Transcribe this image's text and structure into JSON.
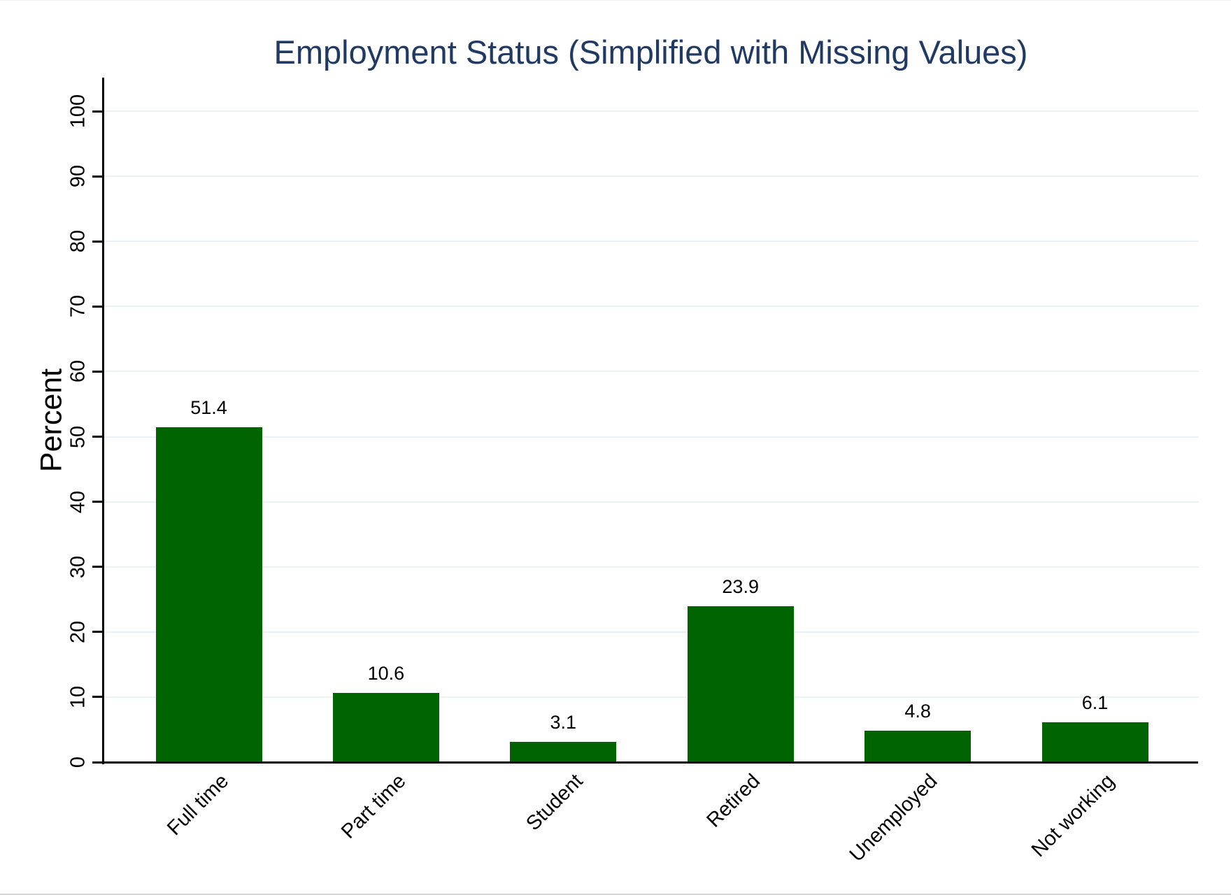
{
  "chart_data": {
    "type": "bar",
    "title": "Employment Status (Simplified with Missing Values)",
    "ylabel": "Percent",
    "xlabel": "",
    "categories": [
      "Full time",
      "Part time",
      "Student",
      "Retired",
      "Unemployed",
      "Not working"
    ],
    "values": [
      51.4,
      10.6,
      3.1,
      23.9,
      4.8,
      6.1
    ],
    "value_labels": [
      "51.4",
      "10.6",
      "3.1",
      "23.9",
      "4.8",
      "6.1"
    ],
    "ylim": [
      0,
      100
    ],
    "yticks": [
      0,
      10,
      20,
      30,
      40,
      50,
      60,
      70,
      80,
      90,
      100
    ],
    "grid": true,
    "legend": "none",
    "x_label_rotation": 45,
    "y_tick_label_rotation": 90,
    "colors": {
      "bar": "#006400",
      "title": "#213a63",
      "gridline": "#eaf2f3",
      "axis": "#000000",
      "text": "#000000",
      "background": "#ffffff"
    }
  }
}
